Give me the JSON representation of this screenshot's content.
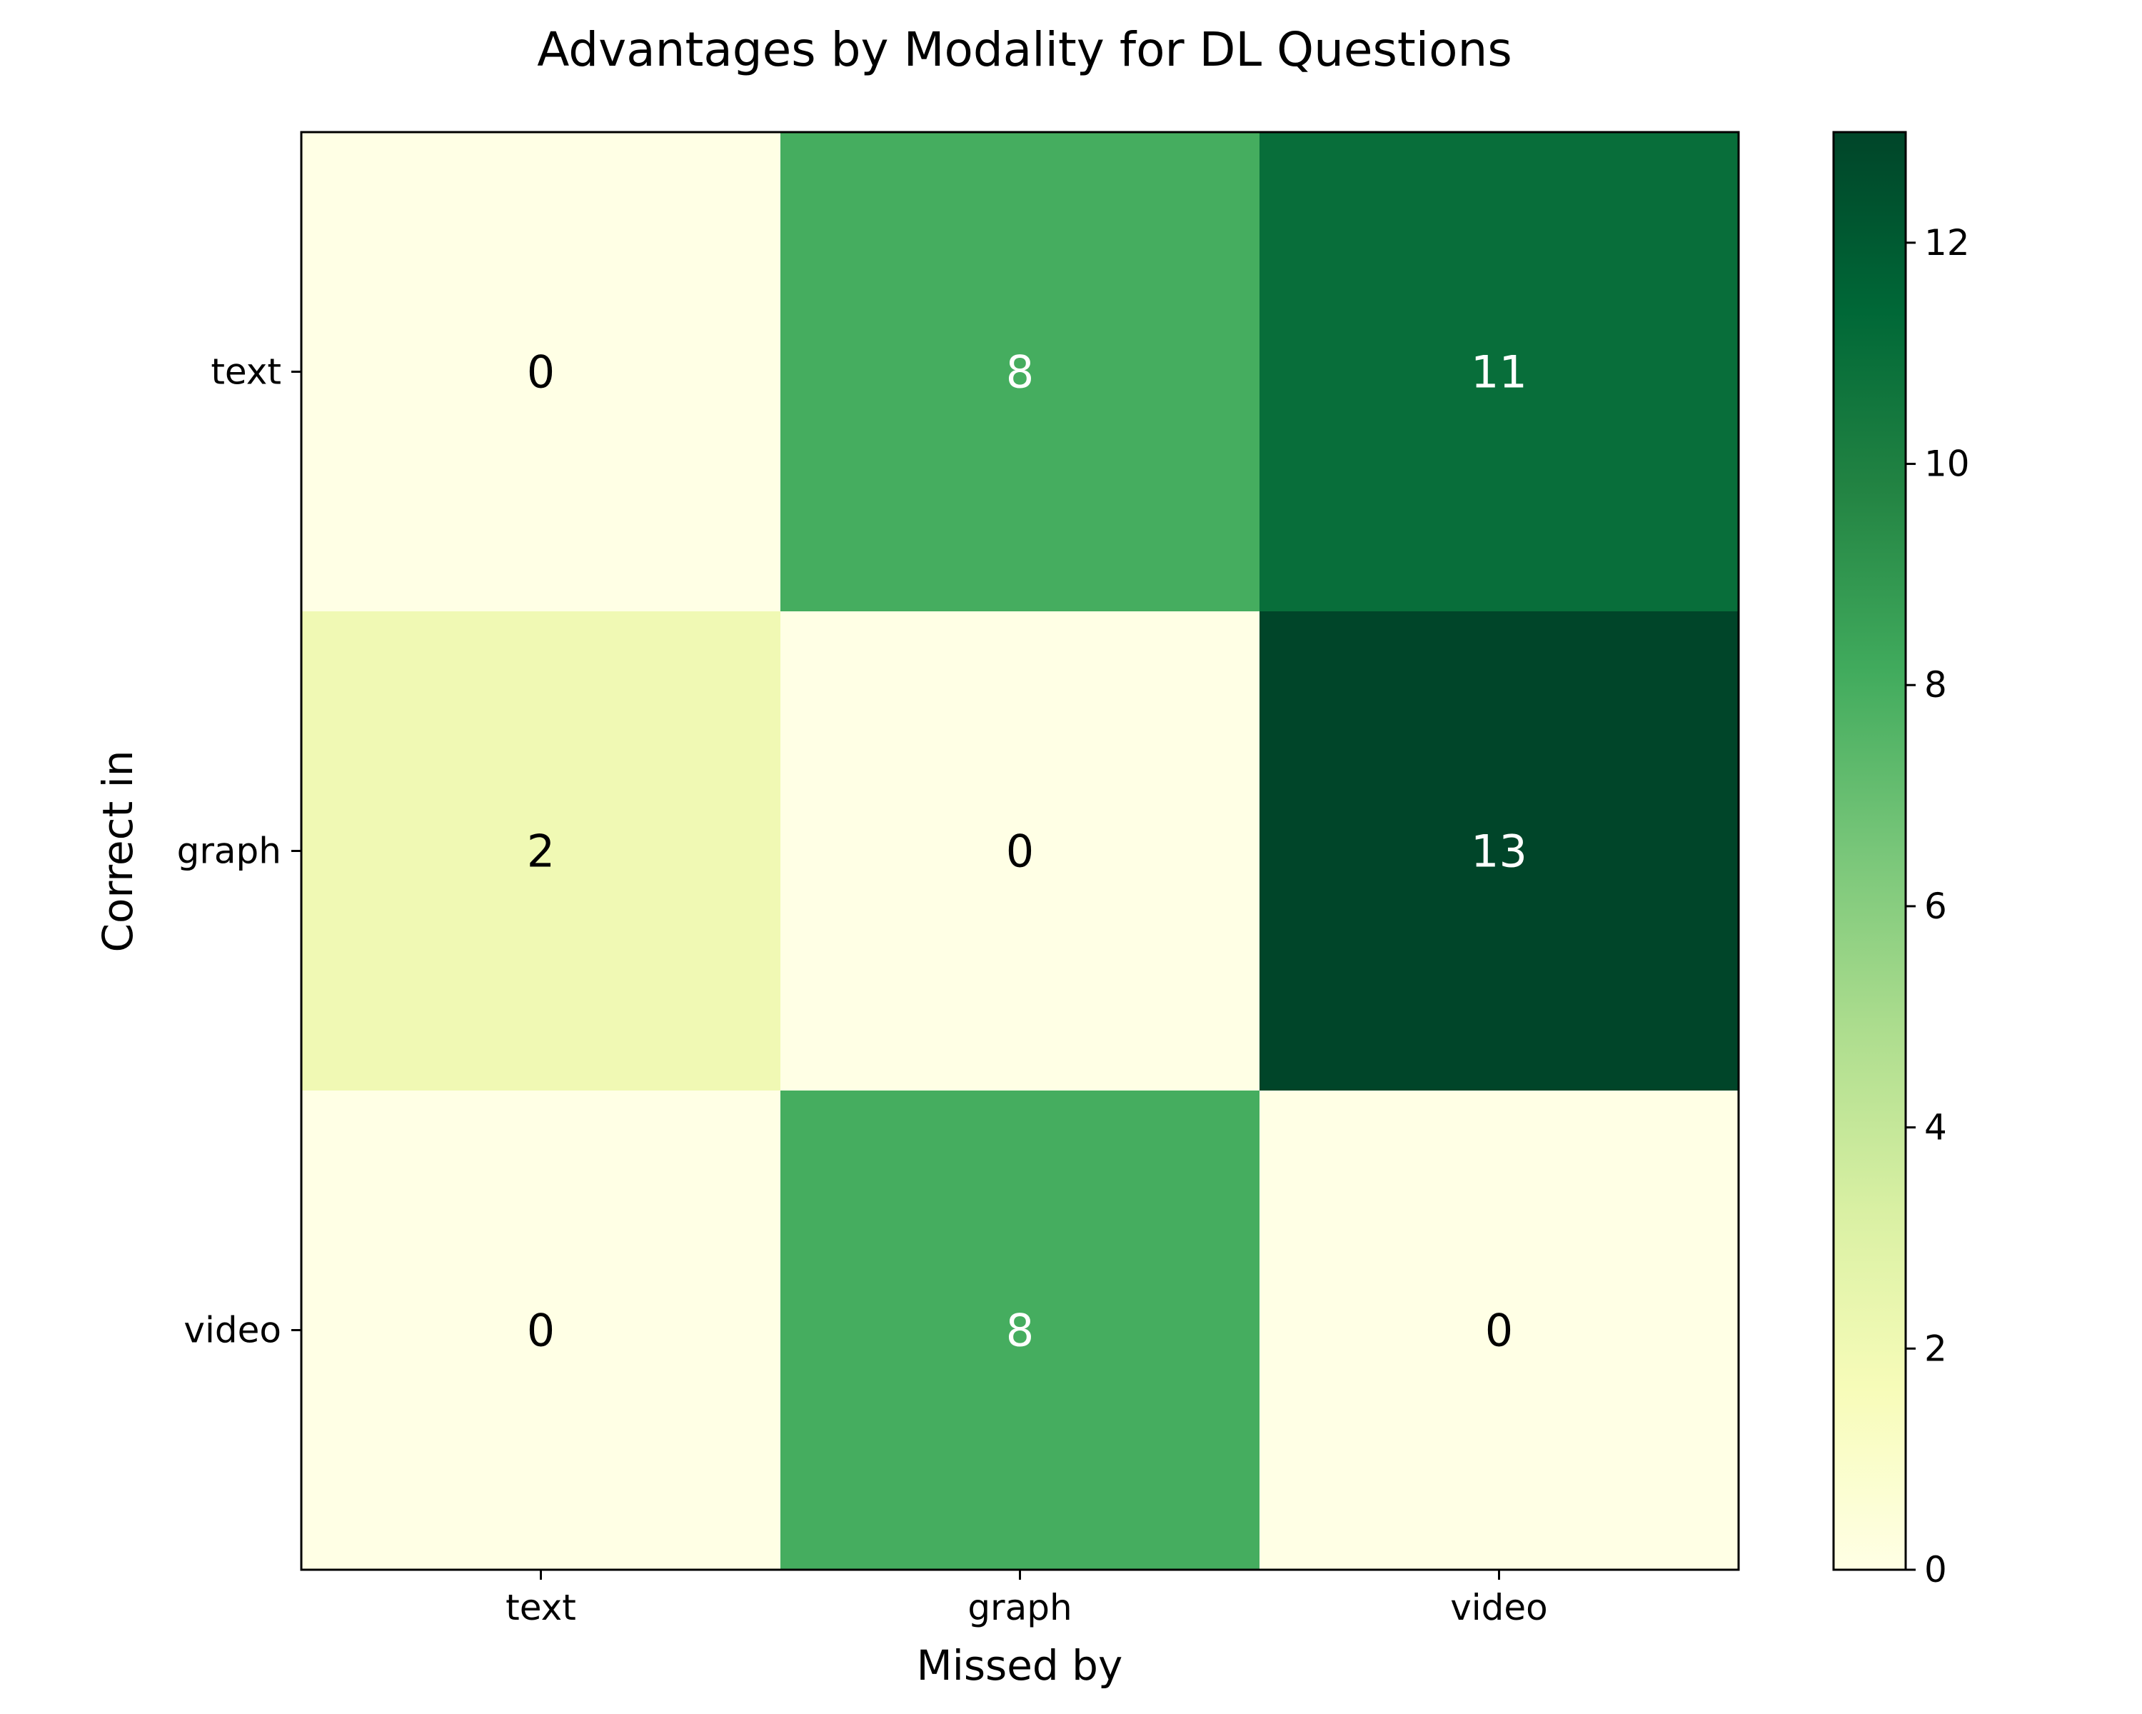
{
  "chart_data": {
    "type": "heatmap",
    "title": "Advantages by Modality for DL Questions",
    "xlabel": "Missed by",
    "ylabel": "Correct in",
    "x_categories": [
      "text",
      "graph",
      "video"
    ],
    "y_categories": [
      "text",
      "graph",
      "video"
    ],
    "values": [
      [
        0,
        8,
        11
      ],
      [
        2,
        0,
        13
      ],
      [
        0,
        8,
        0
      ]
    ],
    "colorbar": {
      "min": 0,
      "max": 13,
      "ticks": [
        0,
        2,
        4,
        6,
        8,
        10,
        12
      ],
      "colormap": "YlGn"
    },
    "grid": false
  }
}
